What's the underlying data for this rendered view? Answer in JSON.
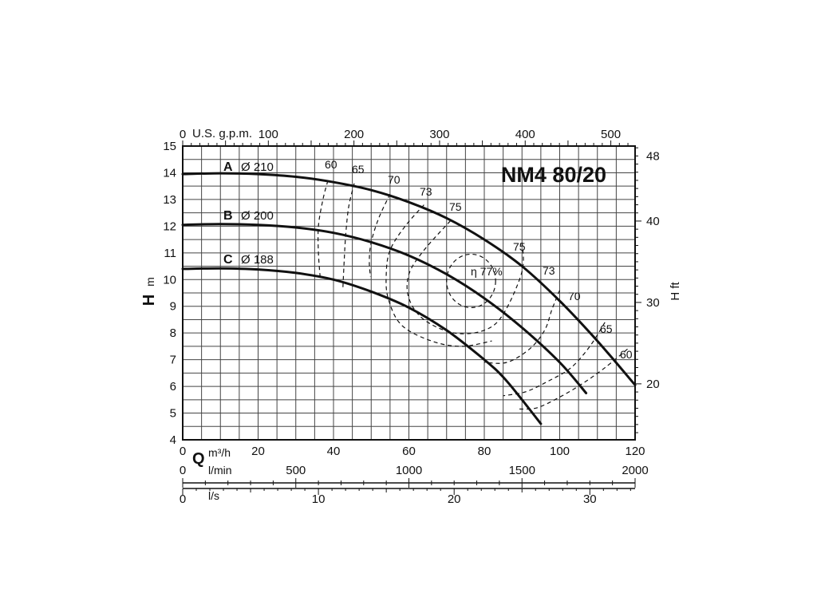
{
  "chart_data": {
    "type": "line",
    "title": "NM4 80/20",
    "x_axis": {
      "letter": "Q",
      "unit": "m³/h",
      "range": [
        0,
        120
      ],
      "ticks": [
        0,
        20,
        40,
        60,
        80,
        100,
        120
      ]
    },
    "y_axis_left": {
      "letter": "H",
      "unit": "m",
      "range": [
        4,
        15
      ],
      "ticks": [
        4,
        5,
        6,
        7,
        8,
        9,
        10,
        11,
        12,
        13,
        14,
        15
      ]
    },
    "y_axis_right": {
      "label": "H ft",
      "ticks": [
        20,
        30,
        40,
        48
      ]
    },
    "top_axis": {
      "label": "U.S. g.p.m.",
      "ticks": [
        0,
        100,
        200,
        300,
        400,
        500
      ]
    },
    "secondary_axes": [
      {
        "label": "l/min",
        "ticks": [
          0,
          500,
          1000,
          1500,
          2000
        ]
      },
      {
        "label": "l/s",
        "ticks": [
          0,
          10,
          20,
          30
        ]
      }
    ],
    "grid": true,
    "series": [
      {
        "letter": "A",
        "name": "Ø 210",
        "x": [
          0,
          10,
          20,
          30,
          40,
          50,
          60,
          70,
          80,
          90,
          100,
          110,
          120
        ],
        "y": [
          13.95,
          13.98,
          13.95,
          13.85,
          13.65,
          13.35,
          12.9,
          12.3,
          11.5,
          10.5,
          9.2,
          7.7,
          6.05
        ]
      },
      {
        "letter": "B",
        "name": "Ø 200",
        "x": [
          0,
          10,
          20,
          30,
          40,
          50,
          60,
          70,
          80,
          90,
          100,
          107
        ],
        "y": [
          12.05,
          12.08,
          12.05,
          11.95,
          11.75,
          11.4,
          10.9,
          10.2,
          9.3,
          8.2,
          6.9,
          5.75
        ]
      },
      {
        "letter": "C",
        "name": "Ø 188",
        "x": [
          0,
          10,
          20,
          30,
          40,
          50,
          60,
          70,
          80,
          85,
          90,
          95
        ],
        "y": [
          10.4,
          10.42,
          10.38,
          10.25,
          10.0,
          9.55,
          8.95,
          8.1,
          7.0,
          6.35,
          5.5,
          4.6
        ]
      }
    ],
    "efficiency_labels": {
      "left": [
        "60",
        "65",
        "70",
        "73",
        "75"
      ],
      "right": [
        "75",
        "73",
        "70",
        "65",
        "60"
      ],
      "peak": "η 77%"
    }
  }
}
